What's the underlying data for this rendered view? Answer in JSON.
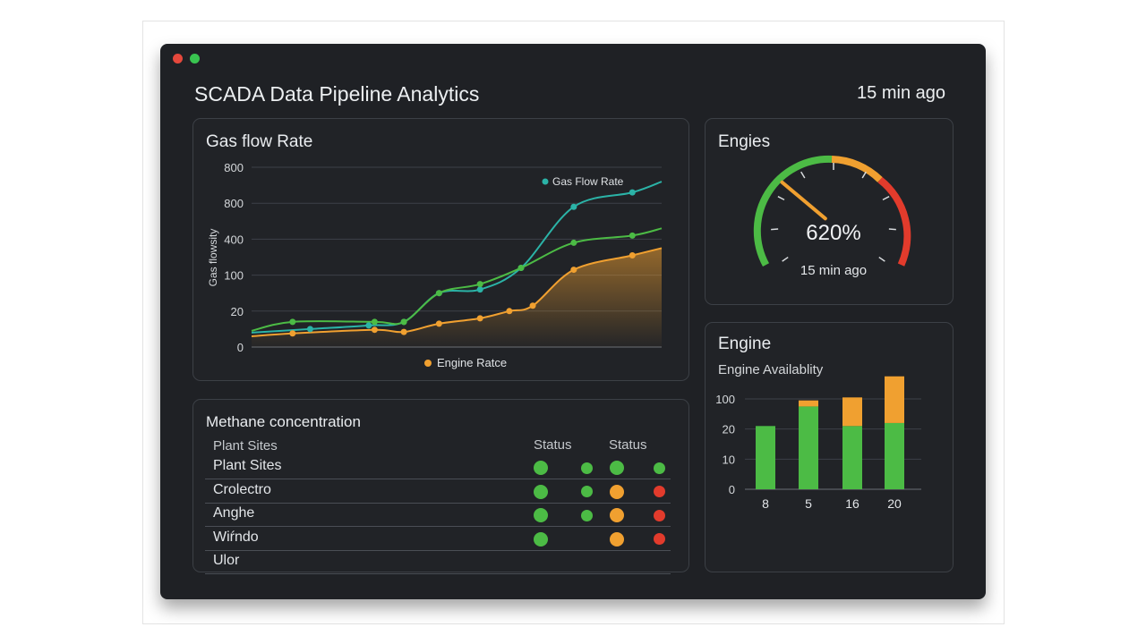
{
  "window": {
    "title": "SCADA Data Pipeline Analytics",
    "updated": "15 min ago"
  },
  "colors": {
    "teal": "#2bb3a7",
    "green": "#4cbb45",
    "orange": "#f0a030",
    "red": "#e23b2c",
    "background": "#1f2125"
  },
  "gas_panel": {
    "title": "Gas flow Rate",
    "legend_top": "Gas Flow Rate",
    "legend_bottom": "Engine Ratce",
    "ylabel": "Gas flowsity"
  },
  "gauge_panel": {
    "title": "Engies",
    "value": "620%",
    "updated": "15 min ago",
    "level": 0.3
  },
  "engine_panel": {
    "title": "Engine",
    "subtitle": "Engine Availablity"
  },
  "methane_panel": {
    "title": "Methane concentration",
    "header": {
      "col1": "Plant Sites",
      "status1": "Status",
      "status2": "Status"
    },
    "rows": [
      {
        "name": "Plant Sites",
        "statuses": [
          "green",
          "green",
          "green",
          "green"
        ]
      },
      {
        "name": "Crolectro",
        "statuses": [
          "green",
          "green",
          "orange",
          "red"
        ]
      },
      {
        "name": "Anghe",
        "statuses": [
          "green",
          "green",
          "orange",
          "red"
        ]
      },
      {
        "name": "Wiŕndo",
        "statuses": [
          "green",
          "",
          "orange",
          "red"
        ]
      },
      {
        "name": "Ulor",
        "statuses": [
          "",
          "",
          "",
          ""
        ]
      }
    ]
  },
  "chart_data": [
    {
      "type": "line",
      "title": "Gas flow Rate",
      "ylabel": "Gas flowsity",
      "y_tick_labels": [
        "0",
        "20",
        "100",
        "400",
        "800",
        "800"
      ],
      "y_range": [
        0,
        5
      ],
      "x_range": [
        0,
        7
      ],
      "series": [
        {
          "name": "Gas Flow Rate",
          "color": "#2bb3a7",
          "x": [
            0,
            1,
            2,
            2.6,
            3.2,
            3.9,
            4.6,
            5.5,
            6.5,
            7
          ],
          "y": [
            0.4,
            0.5,
            0.6,
            0.7,
            1.5,
            1.6,
            2.2,
            3.9,
            4.3,
            4.6
          ]
        },
        {
          "color": "#4cbb45",
          "x": [
            0,
            0.7,
            2.1,
            2.6,
            3.2,
            3.9,
            4.6,
            5.5,
            6.5,
            7
          ],
          "y": [
            0.45,
            0.7,
            0.7,
            0.7,
            1.5,
            1.75,
            2.2,
            2.9,
            3.1,
            3.3
          ]
        },
        {
          "name": "Engine Ratce",
          "color": "#f0a030",
          "x": [
            0,
            0.7,
            2.1,
            2.6,
            3.2,
            3.9,
            4.4,
            4.8,
            5.5,
            6.5,
            7
          ],
          "y": [
            0.3,
            0.38,
            0.48,
            0.42,
            0.65,
            0.8,
            1.0,
            1.15,
            2.15,
            2.55,
            2.75
          ]
        }
      ]
    },
    {
      "type": "bar",
      "title": "Engine",
      "subtitle": "Engine Availablity",
      "categories": [
        "8",
        "5",
        "16",
        "20"
      ],
      "y_tick_labels": [
        "0",
        "10",
        "20",
        "100"
      ],
      "y_range": [
        0,
        3
      ],
      "series": [
        {
          "color": "#4cbb45",
          "values": [
            2.1,
            2.75,
            2.1,
            2.2
          ]
        },
        {
          "color": "#f0a030",
          "values": [
            0,
            0.2,
            0.95,
            1.55
          ]
        }
      ]
    }
  ]
}
